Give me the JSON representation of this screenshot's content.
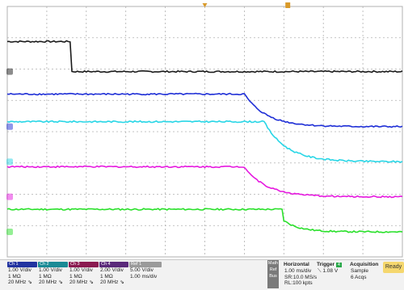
{
  "colors": {
    "ch1": "#1a1a1a",
    "ch2": "#1f2fd6",
    "ch3": "#29d6e6",
    "ch4": "#e61adf",
    "ch5": "#29e02a",
    "grid": "#b0b0b0",
    "trigger_marker": "#d99a2a"
  },
  "waveforms": {
    "ch1": {
      "high": 0.86,
      "low": 0.74,
      "edge": 0.16,
      "shape": "step-fall"
    },
    "ch2": {
      "high": 0.65,
      "low": 0.52,
      "edge": 0.6,
      "shape": "decay"
    },
    "ch3": {
      "high": 0.54,
      "low": 0.38,
      "edge": 0.65,
      "shape": "decay"
    },
    "ch4": {
      "high": 0.36,
      "low": 0.24,
      "edge": 0.6,
      "shape": "decay"
    },
    "ch5": {
      "high": 0.19,
      "low": 0.1,
      "edge": 0.7,
      "shape": "step-fall-slow"
    }
  },
  "channels": [
    {
      "tab": "Ch 1",
      "lines": [
        "1.00 V/div",
        "1 MΩ",
        "20 MHz ⇘"
      ],
      "color": "#2233a0"
    },
    {
      "tab": "Ch 2",
      "lines": [
        "1.00 V/div",
        "1 MΩ",
        "20 MHz ⇘"
      ],
      "color": "#1a8a95"
    },
    {
      "tab": "Ch 3",
      "lines": [
        "1.00 V/div",
        "1 MΩ",
        "20 MHz ⇘"
      ],
      "color": "#8a1a50"
    },
    {
      "tab": "Ch 4",
      "lines": [
        "2.00 V/div",
        "1 MΩ",
        "20 MHz ⇘"
      ],
      "color": "#5a2a7a"
    },
    {
      "tab": "Ref 1",
      "lines": [
        "5.00 V/div",
        "1.00 ms/div"
      ],
      "color": "#9a9a9a"
    }
  ],
  "side_menu": [
    "Math",
    "Ref",
    "Bus"
  ],
  "horizontal": {
    "title": "Horizontal",
    "lines": [
      "1.00 ms/div",
      "SR:10.0 MS/s",
      "RL:100 kpts"
    ]
  },
  "trigger": {
    "title": "Trigger",
    "channel": "4",
    "level": "1.08 V"
  },
  "acquisition": {
    "title": "Acquisition",
    "lines": [
      "Sample",
      "6 Acqs"
    ]
  },
  "ready_label": "Ready"
}
